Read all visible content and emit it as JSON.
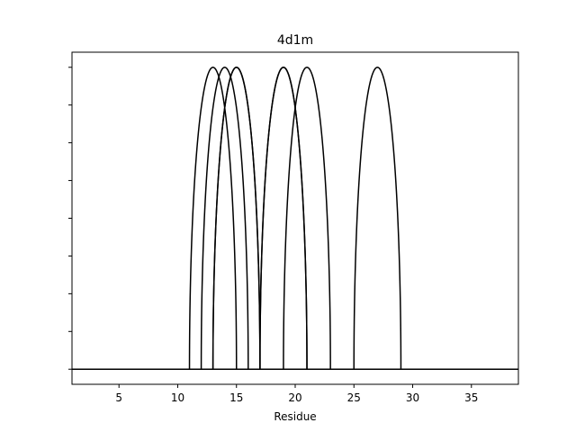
{
  "chart_data": {
    "type": "line",
    "title": "4d1m",
    "xlabel": "Residue",
    "ylabel": "",
    "xlim": [
      1,
      39
    ],
    "ylim": [
      -0.4,
      8.4
    ],
    "xticks": [
      5,
      10,
      15,
      20,
      25,
      30,
      35
    ],
    "yticks": [
      0,
      1,
      2,
      3,
      4,
      5,
      6,
      7,
      8
    ],
    "grid": false,
    "legend": "none",
    "line_color": "#000000",
    "baseline": 0,
    "arcs": [
      {
        "start": 11,
        "end": 15,
        "peak": 8
      },
      {
        "start": 12,
        "end": 16,
        "peak": 8
      },
      {
        "start": 13,
        "end": 17,
        "peak": 8
      },
      {
        "start": 13,
        "end": 17,
        "peak": 8
      },
      {
        "start": 17,
        "end": 21,
        "peak": 8
      },
      {
        "start": 17,
        "end": 21,
        "peak": 8
      },
      {
        "start": 19,
        "end": 23,
        "peak": 8
      },
      {
        "start": 25,
        "end": 29,
        "peak": 8
      }
    ]
  }
}
